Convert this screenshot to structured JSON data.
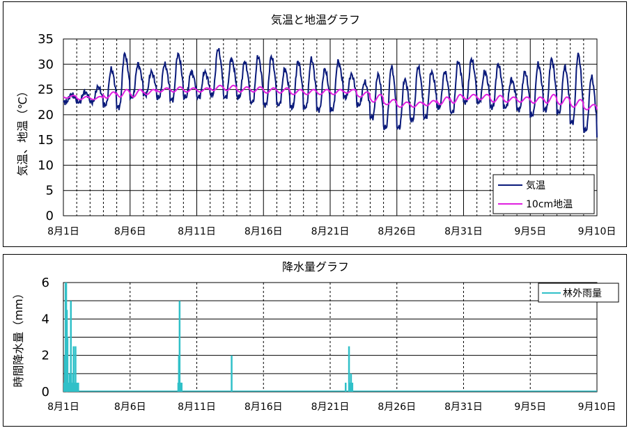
{
  "chart_data": [
    {
      "type": "line",
      "title": "気温と地温グラフ",
      "ylabel": "気温、地温（℃）",
      "xlabel": "",
      "ylim": [
        0,
        35
      ],
      "yticks": [
        "0",
        "5",
        "10",
        "15",
        "20",
        "25",
        "30",
        "35"
      ],
      "x_ticks": [
        "8月1日",
        "8月6日",
        "8月11日",
        "8月16日",
        "8月21日",
        "8月26日",
        "8月31日",
        "9月5日",
        "9月10日"
      ],
      "x_range_days": [
        0,
        40
      ],
      "grid": "solid lines every 5 days, dashed lines every day, solid horizontal lines every 5 units",
      "legend_position": "bottom-right",
      "series": [
        {
          "name": "気温",
          "color": "#0a1a7a",
          "daily": [
            {
              "min": 22.5,
              "max": 24.0
            },
            {
              "min": 22.5,
              "max": 24.5
            },
            {
              "min": 22.5,
              "max": 25.5
            },
            {
              "min": 22.0,
              "max": 29.0
            },
            {
              "min": 21.5,
              "max": 32.0
            },
            {
              "min": 23.5,
              "max": 30.0
            },
            {
              "min": 24.0,
              "max": 28.5
            },
            {
              "min": 23.5,
              "max": 30.0
            },
            {
              "min": 23.0,
              "max": 32.0
            },
            {
              "min": 23.5,
              "max": 28.5
            },
            {
              "min": 23.5,
              "max": 28.5
            },
            {
              "min": 24.0,
              "max": 33.0
            },
            {
              "min": 23.5,
              "max": 31.0
            },
            {
              "min": 23.5,
              "max": 30.5
            },
            {
              "min": 22.5,
              "max": 31.5
            },
            {
              "min": 22.0,
              "max": 31.5
            },
            {
              "min": 22.0,
              "max": 29.0
            },
            {
              "min": 21.5,
              "max": 30.5
            },
            {
              "min": 21.5,
              "max": 31.0
            },
            {
              "min": 21.0,
              "max": 29.0
            },
            {
              "min": 21.0,
              "max": 30.5
            },
            {
              "min": 23.5,
              "max": 28.0
            },
            {
              "min": 22.0,
              "max": 26.5
            },
            {
              "min": 19.5,
              "max": 28.0
            },
            {
              "min": 17.5,
              "max": 29.5
            },
            {
              "min": 17.5,
              "max": 27.0
            },
            {
              "min": 19.0,
              "max": 29.5
            },
            {
              "min": 19.5,
              "max": 28.5
            },
            {
              "min": 21.5,
              "max": 28.5
            },
            {
              "min": 20.5,
              "max": 30.5
            },
            {
              "min": 22.5,
              "max": 31.0
            },
            {
              "min": 22.5,
              "max": 28.5
            },
            {
              "min": 21.5,
              "max": 30.0
            },
            {
              "min": 21.5,
              "max": 27.0
            },
            {
              "min": 21.0,
              "max": 28.5
            },
            {
              "min": 20.0,
              "max": 30.0
            },
            {
              "min": 21.0,
              "max": 31.0
            },
            {
              "min": 20.5,
              "max": 29.5
            },
            {
              "min": 18.5,
              "max": 32.0
            },
            {
              "min": 17.0,
              "max": 27.5
            }
          ],
          "end_value": 15.5
        },
        {
          "name": "10cm地温",
          "color": "#e020e0",
          "daily": [
            {
              "min": 23.3,
              "max": 23.8
            },
            {
              "min": 23.0,
              "max": 23.6
            },
            {
              "min": 23.0,
              "max": 23.6
            },
            {
              "min": 23.3,
              "max": 24.5
            },
            {
              "min": 23.5,
              "max": 25.0
            },
            {
              "min": 23.5,
              "max": 25.0
            },
            {
              "min": 24.0,
              "max": 25.0
            },
            {
              "min": 24.5,
              "max": 25.3
            },
            {
              "min": 24.5,
              "max": 25.5
            },
            {
              "min": 24.5,
              "max": 25.3
            },
            {
              "min": 24.5,
              "max": 25.3
            },
            {
              "min": 24.8,
              "max": 25.8
            },
            {
              "min": 24.8,
              "max": 25.8
            },
            {
              "min": 24.5,
              "max": 25.5
            },
            {
              "min": 24.5,
              "max": 25.5
            },
            {
              "min": 24.3,
              "max": 25.3
            },
            {
              "min": 24.3,
              "max": 25.3
            },
            {
              "min": 24.0,
              "max": 25.0
            },
            {
              "min": 24.0,
              "max": 25.0
            },
            {
              "min": 24.0,
              "max": 25.0
            },
            {
              "min": 24.0,
              "max": 25.0
            },
            {
              "min": 24.3,
              "max": 25.0
            },
            {
              "min": 23.5,
              "max": 24.5
            },
            {
              "min": 22.5,
              "max": 24.0
            },
            {
              "min": 22.0,
              "max": 23.0
            },
            {
              "min": 21.5,
              "max": 22.5
            },
            {
              "min": 21.5,
              "max": 22.5
            },
            {
              "min": 21.8,
              "max": 22.8
            },
            {
              "min": 22.0,
              "max": 23.5
            },
            {
              "min": 22.3,
              "max": 24.0
            },
            {
              "min": 23.0,
              "max": 24.0
            },
            {
              "min": 23.0,
              "max": 24.0
            },
            {
              "min": 22.5,
              "max": 23.8
            },
            {
              "min": 22.5,
              "max": 23.5
            },
            {
              "min": 22.5,
              "max": 23.5
            },
            {
              "min": 22.3,
              "max": 23.5
            },
            {
              "min": 22.3,
              "max": 24.0
            },
            {
              "min": 22.0,
              "max": 23.5
            },
            {
              "min": 21.5,
              "max": 23.0
            },
            {
              "min": 21.0,
              "max": 22.0
            }
          ],
          "end_value": 21.0
        }
      ]
    },
    {
      "type": "bar",
      "title": "降水量グラフ",
      "ylabel": "時間降水量（mm）",
      "xlabel": "",
      "ylim": [
        0,
        6
      ],
      "yticks": [
        "0",
        "2",
        "4",
        "6"
      ],
      "x_ticks": [
        "8月1日",
        "8月6日",
        "8月11日",
        "8月16日",
        "8月21日",
        "8月26日",
        "8月31日",
        "9月5日",
        "9月10日"
      ],
      "x_range_days": [
        0,
        40
      ],
      "grid": "dashed lines every 5 days, solid horizontal lines every 1 unit",
      "legend_position": "top-right",
      "series": [
        {
          "name": "林外雨量",
          "color": "#30c0c8",
          "x_days": [
            0.05,
            0.1,
            0.15,
            0.2,
            0.25,
            0.3,
            0.35,
            0.4,
            0.45,
            0.5,
            0.55,
            0.6,
            0.65,
            0.7,
            0.75,
            0.8,
            0.85,
            0.9,
            1.0,
            1.1,
            8.6,
            8.65,
            8.7,
            8.75,
            8.8,
            8.85,
            12.6,
            21.15,
            21.4,
            21.45,
            21.5,
            21.55,
            21.65
          ],
          "values": [
            0.5,
            2.0,
            6.0,
            6.0,
            4.5,
            3.0,
            0.5,
            0.5,
            1.0,
            0.5,
            5.0,
            0.5,
            0.5,
            1.0,
            2.5,
            0.5,
            0.5,
            2.5,
            0.5,
            0.5,
            0.5,
            2.0,
            5.0,
            0.5,
            0.5,
            0.5,
            2.0,
            0.5,
            2.5,
            0.5,
            0.5,
            1.0,
            0.5
          ]
        }
      ]
    }
  ]
}
